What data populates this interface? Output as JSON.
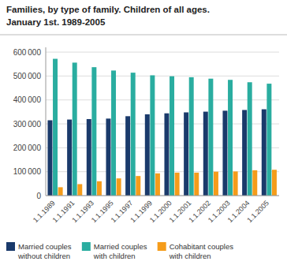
{
  "chart_data": {
    "type": "bar",
    "title": "Families, by type of family. Children of all ages.",
    "subtitle": "January 1st. 1989-2005",
    "categories": [
      "1.1.1989",
      "1.1.1991",
      "1.1.1993",
      "1.1.1995",
      "1.1.1997",
      "1.1.1999",
      "1.1.2000",
      "1.1.2001",
      "1.1.2002",
      "1.1.2003",
      "1.1.2004",
      "1.1.2005"
    ],
    "series": [
      {
        "name": "Married couples\nwithout children",
        "color": "#1a3a6b",
        "values": [
          315000,
          318000,
          320000,
          322000,
          332000,
          340000,
          344000,
          348000,
          351000,
          355000,
          358000,
          361000
        ]
      },
      {
        "name": "Married couples\nwith children",
        "color": "#2aada0",
        "values": [
          572000,
          556000,
          537000,
          523000,
          514000,
          503000,
          499000,
          495000,
          489000,
          484000,
          474000,
          468000
        ]
      },
      {
        "name": "Cohabitant couples\nwith children",
        "color": "#f59c1a",
        "values": [
          35000,
          48000,
          60000,
          72000,
          82000,
          93000,
          96000,
          96000,
          100000,
          101000,
          106000,
          108000
        ]
      }
    ],
    "ylim": [
      0,
      620000
    ],
    "yticks": [
      0,
      {
        "value": 100000,
        "label": "100 000"
      },
      {
        "value": 200000,
        "label": "200 000"
      },
      {
        "value": 300000,
        "label": "300 000"
      },
      {
        "value": 400000,
        "label": "400 000"
      },
      {
        "value": 500000,
        "label": "500 000"
      },
      {
        "value": 600000,
        "label": "600 000"
      }
    ],
    "grid": true,
    "legend": "bottom"
  }
}
